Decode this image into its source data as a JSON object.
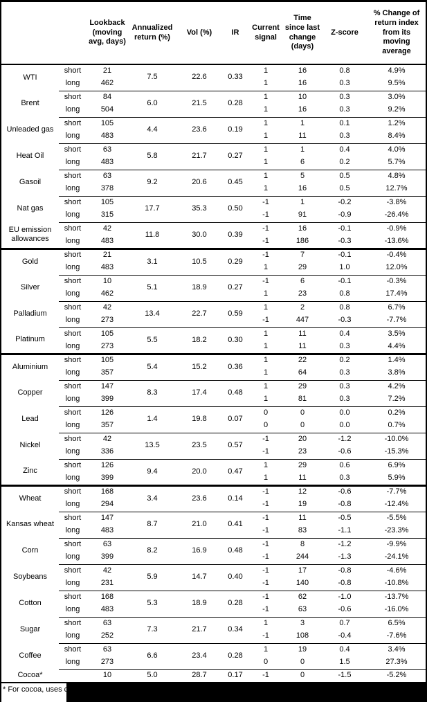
{
  "colors": {
    "text": "#000000",
    "background": "#ffffff",
    "border": "#000000",
    "redaction": "#000000"
  },
  "header": {
    "columns": [
      "",
      "",
      "Lookback (moving avg, days)",
      "Annualized return (%)",
      "Vol (%)",
      "IR",
      "Current signal",
      "Time since last change (days)",
      "Z-score",
      "% Change of return index from its moving average"
    ]
  },
  "groups": [
    {
      "commodities": [
        {
          "name": "WTI",
          "annualized": "7.5",
          "vol": "22.6",
          "ir": "0.33",
          "rows": [
            {
              "sub": "short",
              "lookback": "21",
              "signal": "1",
              "time": "16",
              "z": "0.8",
              "pct": "4.9%"
            },
            {
              "sub": "long",
              "lookback": "462",
              "signal": "1",
              "time": "16",
              "z": "0.3",
              "pct": "9.5%"
            }
          ]
        },
        {
          "name": "Brent",
          "annualized": "6.0",
          "vol": "21.5",
          "ir": "0.28",
          "rows": [
            {
              "sub": "short",
              "lookback": "84",
              "signal": "1",
              "time": "10",
              "z": "0.3",
              "pct": "3.0%"
            },
            {
              "sub": "long",
              "lookback": "504",
              "signal": "1",
              "time": "16",
              "z": "0.3",
              "pct": "9.2%"
            }
          ]
        },
        {
          "name": "Unleaded gas",
          "annualized": "4.4",
          "vol": "23.6",
          "ir": "0.19",
          "rows": [
            {
              "sub": "short",
              "lookback": "105",
              "signal": "1",
              "time": "1",
              "z": "0.1",
              "pct": "1.2%"
            },
            {
              "sub": "long",
              "lookback": "483",
              "signal": "1",
              "time": "11",
              "z": "0.3",
              "pct": "8.4%"
            }
          ]
        },
        {
          "name": "Heat Oil",
          "annualized": "5.8",
          "vol": "21.7",
          "ir": "0.27",
          "rows": [
            {
              "sub": "short",
              "lookback": "63",
              "signal": "1",
              "time": "1",
              "z": "0.4",
              "pct": "4.0%"
            },
            {
              "sub": "long",
              "lookback": "483",
              "signal": "1",
              "time": "6",
              "z": "0.2",
              "pct": "5.7%"
            }
          ]
        },
        {
          "name": "Gasoil",
          "annualized": "9.2",
          "vol": "20.6",
          "ir": "0.45",
          "rows": [
            {
              "sub": "short",
              "lookback": "63",
              "signal": "1",
              "time": "5",
              "z": "0.5",
              "pct": "4.8%"
            },
            {
              "sub": "long",
              "lookback": "378",
              "signal": "1",
              "time": "16",
              "z": "0.5",
              "pct": "12.7%"
            }
          ]
        },
        {
          "name": "Nat gas",
          "annualized": "17.7",
          "vol": "35.3",
          "ir": "0.50",
          "rows": [
            {
              "sub": "short",
              "lookback": "105",
              "signal": "-1",
              "time": "1",
              "z": "-0.2",
              "pct": "-3.8%"
            },
            {
              "sub": "long",
              "lookback": "315",
              "signal": "-1",
              "time": "91",
              "z": "-0.9",
              "pct": "-26.4%"
            }
          ]
        },
        {
          "name": "EU emission allowances",
          "annualized": "11.8",
          "vol": "30.0",
          "ir": "0.39",
          "rows": [
            {
              "sub": "short",
              "lookback": "42",
              "signal": "-1",
              "time": "16",
              "z": "-0.1",
              "pct": "-0.9%"
            },
            {
              "sub": "long",
              "lookback": "483",
              "signal": "-1",
              "time": "186",
              "z": "-0.3",
              "pct": "-13.6%"
            }
          ]
        }
      ]
    },
    {
      "commodities": [
        {
          "name": "Gold",
          "annualized": "3.1",
          "vol": "10.5",
          "ir": "0.29",
          "rows": [
            {
              "sub": "short",
              "lookback": "21",
              "signal": "-1",
              "time": "7",
              "z": "-0.1",
              "pct": "-0.4%"
            },
            {
              "sub": "long",
              "lookback": "483",
              "signal": "1",
              "time": "29",
              "z": "1.0",
              "pct": "12.0%"
            }
          ]
        },
        {
          "name": "Silver",
          "annualized": "5.1",
          "vol": "18.9",
          "ir": "0.27",
          "rows": [
            {
              "sub": "short",
              "lookback": "10",
              "signal": "-1",
              "time": "6",
              "z": "-0.1",
              "pct": "-0.3%"
            },
            {
              "sub": "long",
              "lookback": "462",
              "signal": "1",
              "time": "23",
              "z": "0.8",
              "pct": "17.4%"
            }
          ]
        },
        {
          "name": "Palladium",
          "annualized": "13.4",
          "vol": "22.7",
          "ir": "0.59",
          "rows": [
            {
              "sub": "short",
              "lookback": "42",
              "signal": "1",
              "time": "2",
              "z": "0.8",
              "pct": "6.7%"
            },
            {
              "sub": "long",
              "lookback": "273",
              "signal": "-1",
              "time": "447",
              "z": "-0.3",
              "pct": "-7.7%"
            }
          ]
        },
        {
          "name": "Platinum",
          "annualized": "5.5",
          "vol": "18.2",
          "ir": "0.30",
          "rows": [
            {
              "sub": "short",
              "lookback": "105",
              "signal": "1",
              "time": "11",
              "z": "0.4",
              "pct": "3.5%"
            },
            {
              "sub": "long",
              "lookback": "273",
              "signal": "1",
              "time": "11",
              "z": "0.3",
              "pct": "4.4%"
            }
          ]
        }
      ]
    },
    {
      "commodities": [
        {
          "name": "Aluminium",
          "annualized": "5.4",
          "vol": "15.2",
          "ir": "0.36",
          "rows": [
            {
              "sub": "short",
              "lookback": "105",
              "signal": "1",
              "time": "22",
              "z": "0.2",
              "pct": "1.4%"
            },
            {
              "sub": "long",
              "lookback": "357",
              "signal": "1",
              "time": "64",
              "z": "0.3",
              "pct": "3.8%"
            }
          ]
        },
        {
          "name": "Copper",
          "annualized": "8.3",
          "vol": "17.4",
          "ir": "0.48",
          "rows": [
            {
              "sub": "short",
              "lookback": "147",
              "signal": "1",
              "time": "29",
              "z": "0.3",
              "pct": "4.2%"
            },
            {
              "sub": "long",
              "lookback": "399",
              "signal": "1",
              "time": "81",
              "z": "0.3",
              "pct": "7.2%"
            }
          ]
        },
        {
          "name": "Lead",
          "annualized": "1.4",
          "vol": "19.8",
          "ir": "0.07",
          "rows": [
            {
              "sub": "short",
              "lookback": "126",
              "signal": "0",
              "time": "0",
              "z": "0.0",
              "pct": "0.2%"
            },
            {
              "sub": "long",
              "lookback": "357",
              "signal": "0",
              "time": "0",
              "z": "0.0",
              "pct": "0.7%"
            }
          ]
        },
        {
          "name": "Nickel",
          "annualized": "13.5",
          "vol": "23.5",
          "ir": "0.57",
          "rows": [
            {
              "sub": "short",
              "lookback": "42",
              "signal": "-1",
              "time": "20",
              "z": "-1.2",
              "pct": "-10.0%"
            },
            {
              "sub": "long",
              "lookback": "336",
              "signal": "-1",
              "time": "23",
              "z": "-0.6",
              "pct": "-15.3%"
            }
          ]
        },
        {
          "name": "Zinc",
          "annualized": "9.4",
          "vol": "20.0",
          "ir": "0.47",
          "rows": [
            {
              "sub": "short",
              "lookback": "126",
              "signal": "1",
              "time": "29",
              "z": "0.6",
              "pct": "6.9%"
            },
            {
              "sub": "long",
              "lookback": "399",
              "signal": "1",
              "time": "11",
              "z": "0.3",
              "pct": "5.9%"
            }
          ]
        }
      ]
    },
    {
      "commodities": [
        {
          "name": "Wheat",
          "annualized": "3.4",
          "vol": "23.6",
          "ir": "0.14",
          "rows": [
            {
              "sub": "short",
              "lookback": "168",
              "signal": "-1",
              "time": "12",
              "z": "-0.6",
              "pct": "-7.7%"
            },
            {
              "sub": "long",
              "lookback": "294",
              "signal": "-1",
              "time": "19",
              "z": "-0.8",
              "pct": "-12.4%"
            }
          ]
        },
        {
          "name": "Kansas wheat",
          "annualized": "8.7",
          "vol": "21.0",
          "ir": "0.41",
          "rows": [
            {
              "sub": "short",
              "lookback": "147",
              "signal": "-1",
              "time": "11",
              "z": "-0.5",
              "pct": "-5.5%"
            },
            {
              "sub": "long",
              "lookback": "483",
              "signal": "-1",
              "time": "83",
              "z": "-1.1",
              "pct": "-23.3%"
            }
          ]
        },
        {
          "name": "Corn",
          "annualized": "8.2",
          "vol": "16.9",
          "ir": "0.48",
          "rows": [
            {
              "sub": "short",
              "lookback": "63",
              "signal": "-1",
              "time": "8",
              "z": "-1.2",
              "pct": "-9.9%"
            },
            {
              "sub": "long",
              "lookback": "399",
              "signal": "-1",
              "time": "244",
              "z": "-1.3",
              "pct": "-24.1%"
            }
          ]
        },
        {
          "name": "Soybeans",
          "annualized": "5.9",
          "vol": "14.7",
          "ir": "0.40",
          "rows": [
            {
              "sub": "short",
              "lookback": "42",
              "signal": "-1",
              "time": "17",
              "z": "-0.8",
              "pct": "-4.6%"
            },
            {
              "sub": "long",
              "lookback": "231",
              "signal": "-1",
              "time": "140",
              "z": "-0.8",
              "pct": "-10.8%"
            }
          ]
        },
        {
          "name": "Cotton",
          "annualized": "5.3",
          "vol": "18.9",
          "ir": "0.28",
          "rows": [
            {
              "sub": "short",
              "lookback": "168",
              "signal": "-1",
              "time": "62",
              "z": "-1.0",
              "pct": "-13.7%"
            },
            {
              "sub": "long",
              "lookback": "483",
              "signal": "-1",
              "time": "63",
              "z": "-0.6",
              "pct": "-16.0%"
            }
          ]
        },
        {
          "name": "Sugar",
          "annualized": "7.3",
          "vol": "21.7",
          "ir": "0.34",
          "rows": [
            {
              "sub": "short",
              "lookback": "63",
              "signal": "1",
              "time": "3",
              "z": "0.7",
              "pct": "6.5%"
            },
            {
              "sub": "long",
              "lookback": "252",
              "signal": "-1",
              "time": "108",
              "z": "-0.4",
              "pct": "-7.6%"
            }
          ]
        },
        {
          "name": "Coffee",
          "annualized": "6.6",
          "vol": "23.4",
          "ir": "0.28",
          "rows": [
            {
              "sub": "short",
              "lookback": "63",
              "signal": "1",
              "time": "19",
              "z": "0.4",
              "pct": "3.4%"
            },
            {
              "sub": "long",
              "lookback": "273",
              "signal": "0",
              "time": "0",
              "z": "1.5",
              "pct": "27.3%"
            }
          ]
        },
        {
          "name": "Cocoa*",
          "annualized": "5.0",
          "vol": "28.7",
          "ir": "0.17",
          "rows": [
            {
              "sub": "",
              "lookback": "10",
              "signal": "-1",
              "time": "0",
              "z": "-1.5",
              "pct": "-5.2%"
            }
          ]
        }
      ]
    }
  ],
  "footnote": {
    "text": "* For cocoa, uses c",
    "redacted": true
  }
}
